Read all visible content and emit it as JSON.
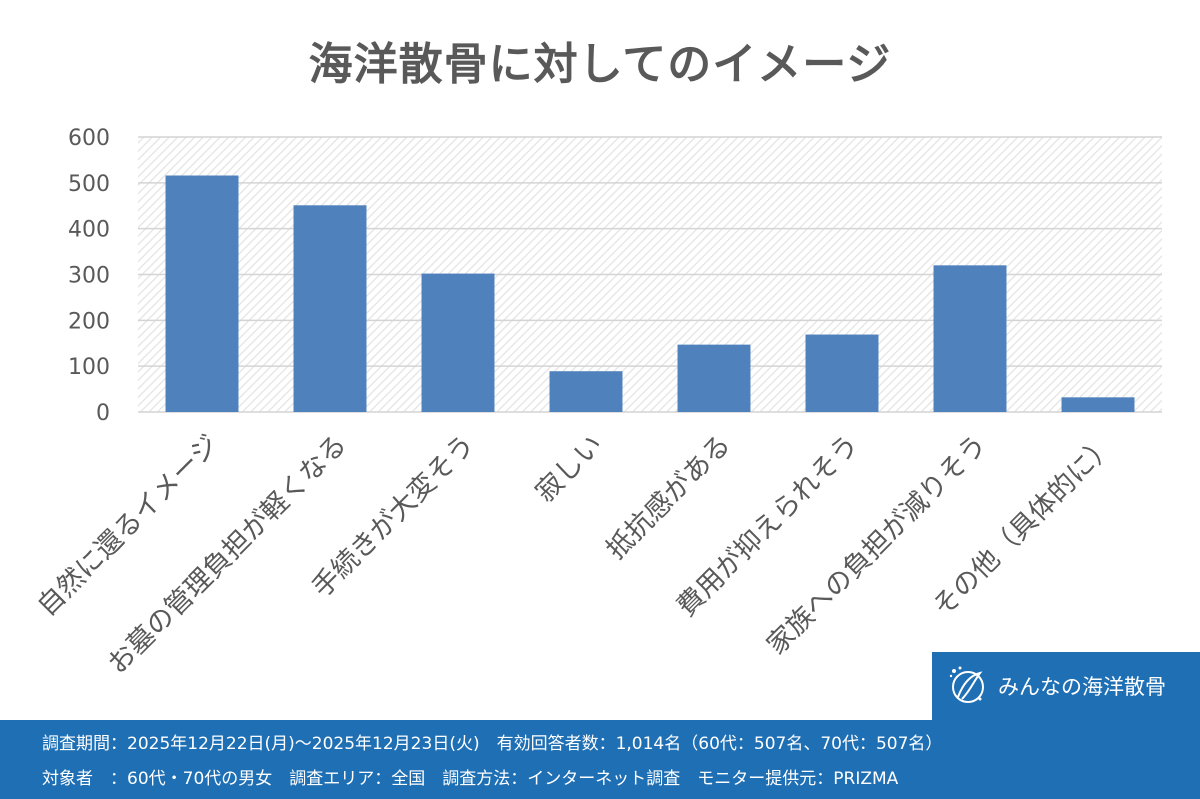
{
  "chart_data": {
    "type": "bar",
    "title": "海洋散骨に対してのイメージ",
    "categories": [
      "自然に還るイメージ",
      "お墓の管理負担が軽くなる",
      "手続きが大変そう",
      "寂しい",
      "抵抗感がある",
      "費用が抑えられそう",
      "家族への負担が減りそう",
      "その他（具体的に）"
    ],
    "values": [
      516,
      451,
      302,
      89,
      147,
      169,
      320,
      32
    ],
    "ylim": [
      0,
      600
    ],
    "yticks": [
      "0",
      "100",
      "200",
      "300",
      "400",
      "500",
      "600"
    ],
    "xlabel": "",
    "ylabel": "",
    "grid": true,
    "bar_color": "#4f81bd"
  },
  "brand": {
    "name": "みんなの海洋散骨",
    "color": "#1f6fb5"
  },
  "footer": {
    "line1": "調査期間：2025年12月22日(月)～2025年12月23日(火)　有効回答者数：1,014名（60代：507名、70代：507名）",
    "line2": "対象者　：60代・70代の男女　調査エリア：全国　調査方法：インターネット調査　モニター提供元：PRIZMA"
  }
}
